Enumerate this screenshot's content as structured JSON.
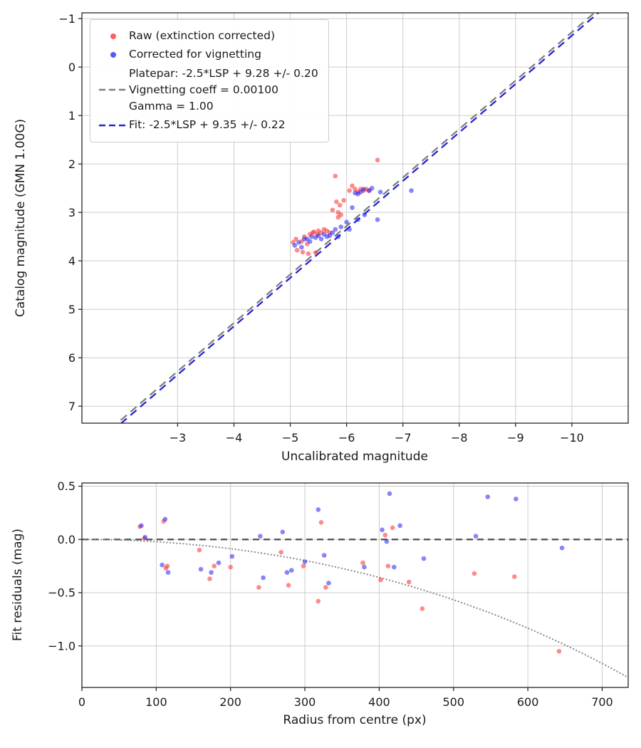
{
  "chart_data": [
    {
      "id": "magnitude-calibration",
      "type": "scatter",
      "xlabel": "Uncalibrated magnitude",
      "ylabel": "Catalog magnitude (GMN 1.00G)",
      "grid": true,
      "x_axis": {
        "range": [
          -1.3,
          -11.0
        ],
        "inverted": true,
        "ticks": [
          -3,
          -4,
          -5,
          -6,
          -7,
          -8,
          -9,
          -10
        ],
        "tick_labels": [
          "−3",
          "−4",
          "−5",
          "−6",
          "−7",
          "−8",
          "−9",
          "−10"
        ]
      },
      "y_axis": {
        "range": [
          -1.12,
          7.35
        ],
        "inverted": true,
        "ticks": [
          -1,
          0,
          1,
          2,
          3,
          4,
          5,
          6,
          7
        ],
        "tick_labels": [
          "−1",
          "0",
          "1",
          "2",
          "3",
          "4",
          "5",
          "6",
          "7"
        ]
      },
      "fit_lines": [
        {
          "id": "platepar-line",
          "label": "Platepar: -2.5*LSP + 9.28 +/- 0.20",
          "slope": 1,
          "intercept": 9.28,
          "color": "#7f7f7f",
          "style": "dashed"
        },
        {
          "id": "fit-line",
          "label": "Fit: -2.5*LSP + 9.35 +/- 0.22",
          "slope": 1,
          "intercept": 9.35,
          "color": "#2424d9",
          "style": "dashed"
        }
      ],
      "series": [
        {
          "id": "raw",
          "name": "Raw (extinction corrected)",
          "color": "#ff2a2a",
          "opacity": 0.55,
          "points": [
            [
              -5.05,
              3.62
            ],
            [
              -5.1,
              3.55
            ],
            [
              -5.12,
              3.78
            ],
            [
              -5.2,
              3.6
            ],
            [
              -5.22,
              3.82
            ],
            [
              -5.25,
              3.5
            ],
            [
              -5.3,
              3.65
            ],
            [
              -5.32,
              3.85
            ],
            [
              -5.35,
              3.45
            ],
            [
              -5.4,
              3.42
            ],
            [
              -5.42,
              3.4
            ],
            [
              -5.45,
              3.83
            ],
            [
              -5.48,
              3.45
            ],
            [
              -5.5,
              3.38
            ],
            [
              -5.55,
              3.42
            ],
            [
              -5.6,
              3.35
            ],
            [
              -5.65,
              3.38
            ],
            [
              -5.7,
              3.42
            ],
            [
              -5.75,
              2.95
            ],
            [
              -5.8,
              2.25
            ],
            [
              -5.82,
              2.78
            ],
            [
              -5.85,
              3.0
            ],
            [
              -5.88,
              2.85
            ],
            [
              -5.9,
              3.05
            ],
            [
              -5.95,
              2.75
            ],
            [
              -6.05,
              2.55
            ],
            [
              -6.1,
              2.45
            ],
            [
              -6.15,
              2.52
            ],
            [
              -6.2,
              2.58
            ],
            [
              -6.25,
              2.52
            ],
            [
              -6.3,
              2.55
            ],
            [
              -6.35,
              2.52
            ],
            [
              -6.55,
              1.92
            ],
            [
              -6.4,
              2.55
            ],
            [
              -5.85,
              3.1
            ]
          ]
        },
        {
          "id": "vignetting-corrected",
          "name": "Corrected for vignetting",
          "color": "#2222ee",
          "opacity": 0.55,
          "points": [
            [
              -5.08,
              3.68
            ],
            [
              -5.15,
              3.62
            ],
            [
              -5.2,
              3.72
            ],
            [
              -5.25,
              3.55
            ],
            [
              -5.3,
              3.55
            ],
            [
              -5.35,
              3.6
            ],
            [
              -5.38,
              3.5
            ],
            [
              -5.45,
              3.52
            ],
            [
              -5.5,
              3.48
            ],
            [
              -5.55,
              3.55
            ],
            [
              -5.6,
              3.45
            ],
            [
              -5.65,
              3.5
            ],
            [
              -5.7,
              3.48
            ],
            [
              -5.75,
              3.42
            ],
            [
              -5.8,
              3.35
            ],
            [
              -5.85,
              3.5
            ],
            [
              -5.9,
              3.3
            ],
            [
              -6.0,
              3.2
            ],
            [
              -6.05,
              3.35
            ],
            [
              -6.1,
              2.9
            ],
            [
              -6.15,
              2.6
            ],
            [
              -6.2,
              2.62
            ],
            [
              -6.25,
              2.58
            ],
            [
              -6.3,
              2.52
            ],
            [
              -6.32,
              3.05
            ],
            [
              -6.4,
              2.55
            ],
            [
              -6.45,
              2.5
            ],
            [
              -6.6,
              2.58
            ],
            [
              -7.15,
              2.55
            ],
            [
              -6.2,
              3.15
            ],
            [
              -6.55,
              3.15
            ]
          ]
        }
      ]
    },
    {
      "id": "fit-residuals",
      "type": "scatter",
      "xlabel": "Radius from centre (px)",
      "ylabel": "Fit residuals (mag)",
      "grid": true,
      "x_axis": {
        "range": [
          0,
          735
        ],
        "inverted": false,
        "ticks": [
          0,
          100,
          200,
          300,
          400,
          500,
          600,
          700
        ],
        "tick_labels": [
          "0",
          "100",
          "200",
          "300",
          "400",
          "500",
          "600",
          "700"
        ]
      },
      "y_axis": {
        "range": [
          0.53,
          -1.39
        ],
        "inverted": false,
        "ticks": [
          0.5,
          0.0,
          -0.5,
          -1.0
        ],
        "tick_labels": [
          "0.5",
          "0.0",
          "−0.5",
          "−1.0"
        ]
      },
      "zero_line": {
        "y": 0.0,
        "color": "#4d4d4d",
        "style": "dashed"
      },
      "vignetting_curve": {
        "coeff": 0.001,
        "color": "#8a8a8a",
        "style": "dotted"
      },
      "series": [
        {
          "id": "raw-residuals",
          "name": "Raw (extinction corrected)",
          "color": "#ff2a2a",
          "opacity": 0.55,
          "points": [
            [
              78,
              0.12
            ],
            [
              84,
              0.01
            ],
            [
              110,
              0.17
            ],
            [
              113,
              -0.27
            ],
            [
              115,
              -0.25
            ],
            [
              158,
              -0.1
            ],
            [
              172,
              -0.37
            ],
            [
              178,
              -0.25
            ],
            [
              200,
              -0.26
            ],
            [
              238,
              -0.45
            ],
            [
              268,
              -0.12
            ],
            [
              278,
              -0.43
            ],
            [
              298,
              -0.25
            ],
            [
              318,
              -0.58
            ],
            [
              322,
              0.16
            ],
            [
              328,
              -0.45
            ],
            [
              378,
              -0.22
            ],
            [
              402,
              -0.38
            ],
            [
              408,
              0.04
            ],
            [
              412,
              -0.25
            ],
            [
              418,
              0.11
            ],
            [
              440,
              -0.4
            ],
            [
              458,
              -0.65
            ],
            [
              528,
              -0.32
            ],
            [
              582,
              -0.35
            ],
            [
              642,
              -1.05
            ]
          ]
        },
        {
          "id": "vignetting-residuals",
          "name": "Corrected for vignetting",
          "color": "#2222ee",
          "opacity": 0.55,
          "points": [
            [
              80,
              0.13
            ],
            [
              85,
              0.02
            ],
            [
              108,
              -0.24
            ],
            [
              112,
              0.19
            ],
            [
              116,
              -0.31
            ],
            [
              160,
              -0.28
            ],
            [
              174,
              -0.31
            ],
            [
              184,
              -0.22
            ],
            [
              202,
              -0.16
            ],
            [
              240,
              0.03
            ],
            [
              244,
              -0.36
            ],
            [
              270,
              0.07
            ],
            [
              276,
              -0.31
            ],
            [
              282,
              -0.29
            ],
            [
              300,
              -0.21
            ],
            [
              318,
              0.28
            ],
            [
              326,
              -0.15
            ],
            [
              332,
              -0.41
            ],
            [
              380,
              -0.26
            ],
            [
              404,
              0.09
            ],
            [
              410,
              -0.02
            ],
            [
              414,
              0.43
            ],
            [
              420,
              -0.26
            ],
            [
              428,
              0.13
            ],
            [
              460,
              -0.18
            ],
            [
              530,
              0.03
            ],
            [
              546,
              0.4
            ],
            [
              584,
              0.38
            ],
            [
              646,
              -0.08
            ]
          ]
        }
      ]
    }
  ],
  "legend": {
    "items": [
      {
        "id": "raw-series",
        "marker": "dot",
        "color": "#ff2a2a",
        "label_lines": [
          "Raw (extinction corrected)"
        ]
      },
      {
        "id": "vignetting-series",
        "marker": "dot",
        "color": "#2222ee",
        "label_lines": [
          "Corrected for vignetting"
        ]
      },
      {
        "id": "platepar-line",
        "marker": "dashed-line",
        "color": "#7f7f7f",
        "label_lines": [
          "Platepar: -2.5*LSP + 9.28 +/- 0.20",
          "Vignetting coeff = 0.00100",
          "Gamma = 1.00"
        ]
      },
      {
        "id": "fit-line",
        "marker": "dashed-line",
        "color": "#2424d9",
        "label_lines": [
          "Fit: -2.5*LSP + 9.35 +/- 0.22"
        ]
      }
    ]
  },
  "colors": {
    "background": "#ffffff",
    "grid": "#cccccc",
    "spine": "#262626",
    "raw_points": "#ff2a2a",
    "vignetting_points": "#2222ee",
    "platepar_line": "#7f7f7f",
    "fit_line": "#2424d9",
    "zero_line": "#4d4d4d",
    "vignetting_curve": "#8a8a8a"
  }
}
